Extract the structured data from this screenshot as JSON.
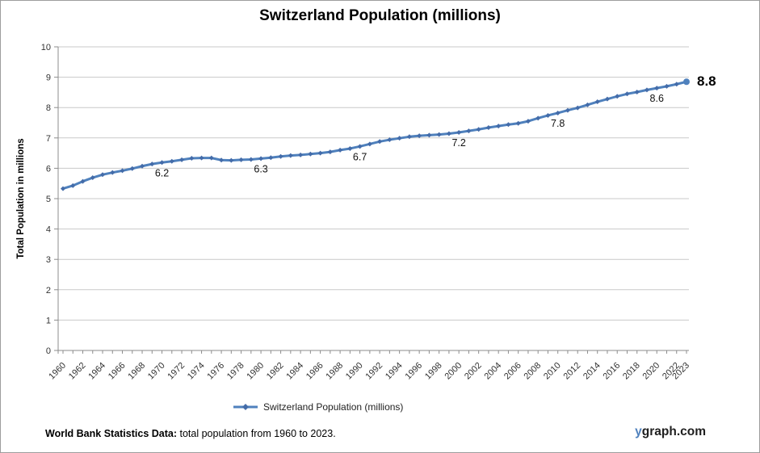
{
  "title": "Switzerland Population (millions)",
  "y_axis_title": "Total Population in millions",
  "legend": {
    "label": "Switzerland Population (millions)"
  },
  "footer": {
    "bold": "World Bank Statistics Data:",
    "rest": " total population from 1960 to 2023."
  },
  "branding": {
    "prefix": "y",
    "rest": "graph.com",
    "prefix_color": "#4F81BD"
  },
  "chart_data": {
    "type": "line",
    "title": "Switzerland Population (millions)",
    "xlabel": "",
    "ylabel": "Total Population in millions",
    "ylim": [
      0,
      10
    ],
    "grid": true,
    "legend_position": "bottom",
    "x": [
      1960,
      1961,
      1962,
      1963,
      1964,
      1965,
      1966,
      1967,
      1968,
      1969,
      1970,
      1971,
      1972,
      1973,
      1974,
      1975,
      1976,
      1977,
      1978,
      1979,
      1980,
      1981,
      1982,
      1983,
      1984,
      1985,
      1986,
      1987,
      1988,
      1989,
      1990,
      1991,
      1992,
      1993,
      1994,
      1995,
      1996,
      1997,
      1998,
      1999,
      2000,
      2001,
      2002,
      2003,
      2004,
      2005,
      2006,
      2007,
      2008,
      2009,
      2010,
      2011,
      2012,
      2013,
      2014,
      2015,
      2016,
      2017,
      2018,
      2019,
      2020,
      2021,
      2022,
      2023
    ],
    "series": [
      {
        "name": "Switzerland Population (millions)",
        "color": "#4F81BD",
        "marker_color": "#446CA9",
        "values": [
          5.33,
          5.43,
          5.57,
          5.69,
          5.79,
          5.86,
          5.92,
          5.99,
          6.07,
          6.14,
          6.19,
          6.23,
          6.28,
          6.33,
          6.34,
          6.34,
          6.27,
          6.26,
          6.28,
          6.29,
          6.32,
          6.35,
          6.39,
          6.42,
          6.44,
          6.47,
          6.5,
          6.54,
          6.6,
          6.65,
          6.72,
          6.8,
          6.88,
          6.94,
          6.99,
          7.04,
          7.07,
          7.09,
          7.11,
          7.14,
          7.18,
          7.23,
          7.28,
          7.34,
          7.39,
          7.44,
          7.48,
          7.55,
          7.65,
          7.74,
          7.82,
          7.91,
          7.99,
          8.09,
          8.19,
          8.28,
          8.37,
          8.45,
          8.51,
          8.58,
          8.64,
          8.7,
          8.77,
          8.85
        ]
      }
    ],
    "y_tick_labels": [
      "0",
      "1",
      "2",
      "3",
      "4",
      "5",
      "6",
      "7",
      "8",
      "9",
      "10"
    ],
    "x_tick_labels": [
      "1960",
      "1962",
      "1964",
      "1966",
      "1968",
      "1970",
      "1972",
      "1974",
      "1976",
      "1978",
      "1980",
      "1982",
      "1984",
      "1986",
      "1988",
      "1990",
      "1992",
      "1994",
      "1996",
      "1998",
      "2000",
      "2002",
      "2004",
      "2006",
      "2008",
      "2010",
      "2012",
      "2014",
      "2016",
      "2018",
      "2020",
      "2022",
      "2023"
    ],
    "point_labels": [
      {
        "year": 1970,
        "text": "6.2",
        "bold": false
      },
      {
        "year": 1980,
        "text": "6.3",
        "bold": false
      },
      {
        "year": 1990,
        "text": "6.7",
        "bold": false
      },
      {
        "year": 2000,
        "text": "7.2",
        "bold": false
      },
      {
        "year": 2010,
        "text": "7.8",
        "bold": false
      },
      {
        "year": 2020,
        "text": "8.6",
        "bold": false
      },
      {
        "year": 2023,
        "text": "8.8",
        "bold": true
      }
    ]
  }
}
